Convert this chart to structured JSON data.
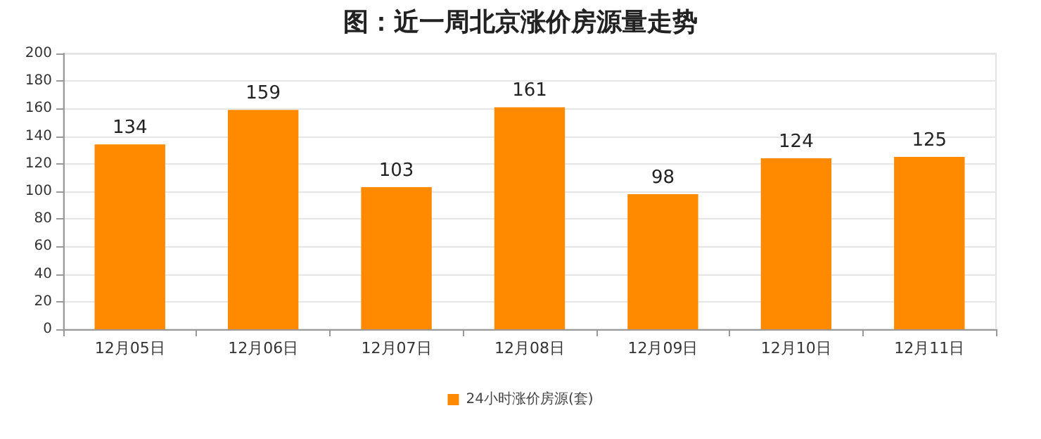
{
  "chart_data": {
    "type": "bar",
    "title": "图：近一周北京涨价房源量走势",
    "categories": [
      "12月05日",
      "12月06日",
      "12月07日",
      "12月08日",
      "12月09日",
      "12月10日",
      "12月11日"
    ],
    "series": [
      {
        "name": "24小时涨价房源(套)",
        "color": "#ff8a00",
        "values": [
          134,
          159,
          103,
          161,
          98,
          124,
          125
        ]
      }
    ],
    "ylim": [
      0,
      200
    ],
    "yticks": [
      0,
      20,
      40,
      60,
      80,
      100,
      120,
      140,
      160,
      180,
      200
    ],
    "grid": "y",
    "legend": "bottom",
    "data_labels": true
  }
}
